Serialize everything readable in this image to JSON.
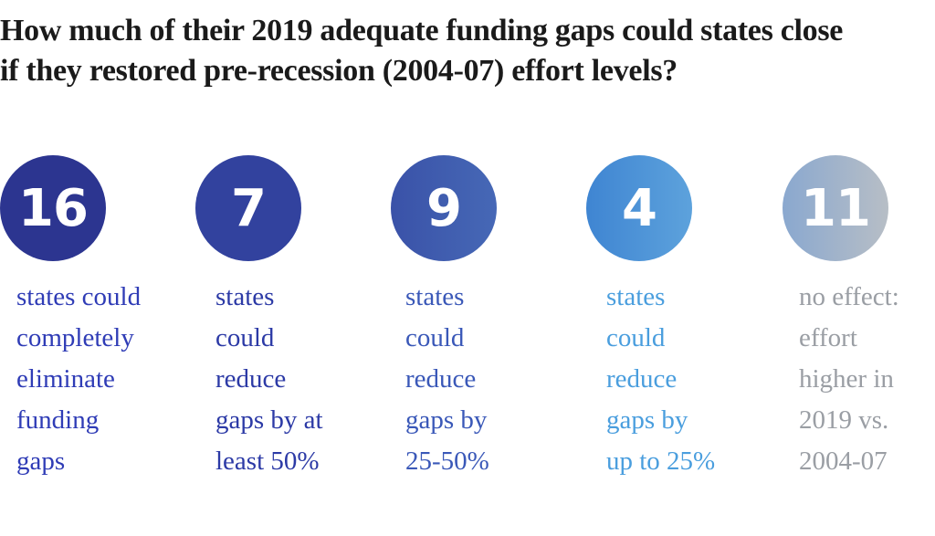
{
  "title": {
    "line1": "How much of their 2019 adequate funding gaps could states close",
    "line2": "if they restored pre-recession (2004-07) effort levels?"
  },
  "stats": [
    {
      "number": "16",
      "lines": [
        "states could",
        "completely",
        "eliminate",
        "funding",
        "gaps"
      ],
      "circle_color": "#2c3590",
      "text_color": "#2f3cb6"
    },
    {
      "number": "7",
      "lines": [
        "states",
        "could",
        "reduce",
        "gaps by at",
        "least 50%"
      ],
      "circle_color": "#32429e",
      "text_color": "#2c3aa6"
    },
    {
      "number": "9",
      "lines": [
        "states",
        "could",
        "reduce",
        "gaps by",
        "25-50%"
      ],
      "circle_color": "#4060b0",
      "text_color": "#3a58b8"
    },
    {
      "number": "4",
      "lines": [
        "states",
        "could",
        "reduce",
        "gaps by",
        "up to 25%"
      ],
      "circle_color": "#4f95d8",
      "text_color": "#4a9ede"
    },
    {
      "number": "11",
      "lines": [
        "no effect:",
        "effort",
        "higher in",
        "2019 vs.",
        "2004-07"
      ],
      "circle_color": "#a3b4cb",
      "text_color": "#9a9ea4"
    }
  ]
}
